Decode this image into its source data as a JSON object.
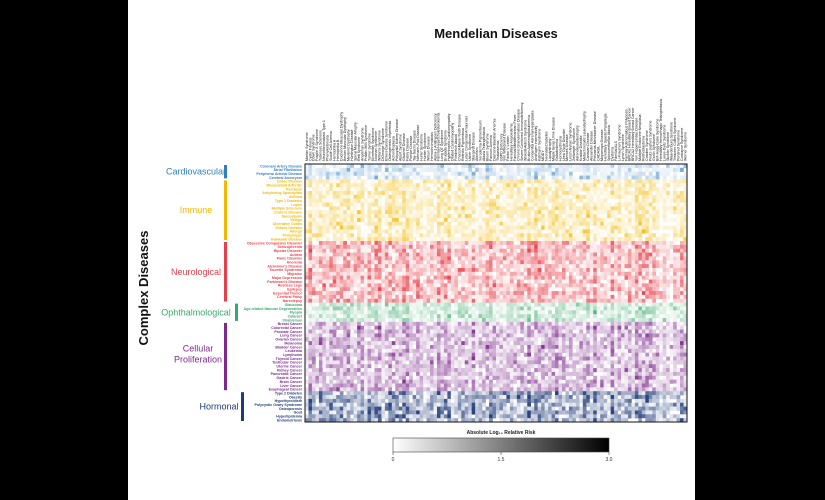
{
  "chart_data": {
    "type": "heatmap",
    "title": "Mendelian Diseases",
    "ylabel": "Complex Diseases",
    "colorbar": {
      "label": "Absolute Log₁₀ Relative Risk",
      "ticks": [
        "0",
        "1.5",
        "3.0"
      ],
      "range": [
        0,
        3.0
      ]
    },
    "n_columns": 110,
    "groups": [
      {
        "name": "Cardiovascular",
        "color": "#2f7fc0",
        "rows": [
          "Coronary Artery Disease",
          "Atrial Fibrillation",
          "Peripheral Arterial Disease",
          "Cerebral Aneurysm"
        ]
      },
      {
        "name": "Immune",
        "color": "#f2b800",
        "rows": [
          "Celiac Disease",
          "Rheumatoid Arthritis",
          "Psoriasis",
          "Ankylosing Spondylitis",
          "Asthma",
          "Type 1 Diabetes",
          "Lupus",
          "Multiple Sclerosis",
          "Crohn's Disease",
          "Sarcoidosis",
          "Vitiligo",
          "Ulcerative Colitis",
          "Graves Disease",
          "Allergy",
          "Pemphigus",
          "Kawasaki Disease"
        ]
      },
      {
        "name": "Neurological",
        "color": "#e8404a",
        "rows": [
          "Obsessive Compulsive Disorder",
          "Schizophrenia",
          "Bipolar Disorder",
          "Autism",
          "Panic Disorder",
          "Anorexia",
          "Alzheimer's Disease",
          "Tourette Syndrome",
          "Migraine",
          "Major Depression",
          "Parkinson's Disease",
          "Restless Legs",
          "Epilepsy",
          "Essential Tremor",
          "Cerebral Palsy",
          "Narcolepsy"
        ]
      },
      {
        "name": "Ophthalmological",
        "color": "#3aa86b",
        "rows": [
          "Glaucoma",
          "Age-related Macular Degeneration",
          "Myopia",
          "Cataract",
          "Strabismus"
        ]
      },
      {
        "name": "Cellular Proliferation",
        "color": "#7d2a8c",
        "rows": [
          "Breast Cancer",
          "Colorectal Cancer",
          "Prostate Cancer",
          "Lung Cancer",
          "Ovarian Cancer",
          "Melanoma",
          "Bladder Cancer",
          "Leukemia",
          "Lymphoma",
          "Thyroid Cancer",
          "Testicular Cancer",
          "Uterine Cancer",
          "Kidney Cancer",
          "Pancreatic Cancer",
          "Gastric Cancer",
          "Brain Cancer",
          "Liver Cancer",
          "Esophageal Cancer"
        ]
      },
      {
        "name": "Hormonal",
        "color": "#1f3a78",
        "rows": [
          "Type 2 Diabetes",
          "Obesity",
          "Hypothyroidism",
          "Polycystic Ovary Syndrome",
          "Osteoporosis",
          "Gout",
          "Hyperlipidemia",
          "Endometriosis"
        ]
      }
    ],
    "columns": [
      "Marfan Syndrome",
      "Cystic Fibrosis",
      "Down Syndrome",
      "Fragile X Syndrome",
      "Tuberous Sclerosis",
      "Neurofibromatosis Type 1",
      "Phenylketonuria",
      "Sickle Cell Anemia",
      "Hemophilia A",
      "Hemophilia B",
      "Duchenne Muscular Dystrophy",
      "Becker Muscular Dystrophy",
      "Myotonic Dystrophy",
      "Huntington Disease",
      "Spinal Muscular Atrophy",
      "Rett Syndrome",
      "Angelman Syndrome",
      "Prader-Willi Syndrome",
      "Turner Syndrome",
      "Klinefelter Syndrome",
      "Noonan Syndrome",
      "Williams Syndrome",
      "DiGeorge Syndrome",
      "Ehlers-Danlos Syndrome",
      "Osteogenesis Imperfecta",
      "Achondroplasia",
      "Polycystic Kidney Disease",
      "Alport Syndrome",
      "Gaucher Disease",
      "Fabry Disease",
      "Pompe Disease",
      "Tay-Sachs Disease",
      "Niemann-Pick Disease",
      "Hurler Syndrome",
      "Hunter Syndrome",
      "Wilson Disease",
      "Hemochromatosis",
      "Alpha-1 Antitrypsin Deficiency",
      "Familial Hypercholesterolemia",
      "Long QT Syndrome",
      "Brugada Syndrome",
      "Hypertrophic Cardiomyopathy",
      "Dilated Cardiomyopathy",
      "Friedreich Ataxia",
      "Charcot-Marie-Tooth Disease",
      "Retinitis Pigmentosa",
      "Leber Congenital Amaurosis",
      "Usher Syndrome",
      "Stargardt Disease",
      "Albinism",
      "Xeroderma Pigmentosum",
      "Ataxia Telangiectasia",
      "Bloom Syndrome",
      "Fanconi Anemia",
      "Diamond-Blackfan Anemia",
      "Thalassemia",
      "G6PD Deficiency",
      "Von Willebrand Disease",
      "Factor V Leiden",
      "Hereditary Angioedema",
      "Familial Mediterranean Fever",
      "Chronic Granulomatous Disease",
      "Severe Combined Immunodeficiency",
      "Wiskott-Aldrich Syndrome",
      "Bruton Agammaglobulinemia",
      "Congenital Adrenal Hyperplasia",
      "Androgen Insensitivity",
      "Kallmann Syndrome",
      "MODY",
      "Neonatal Diabetes",
      "Lipodystrophy",
      "Maple Syrup Urine Disease",
      "Galactosemia",
      "Homocystinuria",
      "Urea Cycle Disorder",
      "Menkes Disease",
      "Lesch-Nyhan Syndrome",
      "Zellweger Syndrome",
      "Adrenoleukodystrophy",
      "Krabbe Disease",
      "Metachromatic Leukodystrophy",
      "Canavan Disease",
      "Alexander Disease",
      "Pelizaeus-Merzbacher Disease",
      "CADASIL",
      "Moyamoya Disease",
      "Hereditary Spastic Paraplegia",
      "Spinocerebellar Ataxia",
      "Dystonia",
      "Familial ALS",
      "Li-Fraumeni Syndrome",
      "Lynch Syndrome",
      "Familial Adenomatous Polyposis",
      "BRCA1 Hereditary Breast Cancer",
      "BRCA2 Hereditary Breast Cancer",
      "Von Hippel-Lindau Disease",
      "Multiple Endocrine Neoplasia",
      "Retinoblastoma",
      "Cowden Syndrome",
      "Peutz-Jeghers Syndrome",
      "Gorlin Syndrome",
      "Birt-Hogg-Dube Syndrome",
      "Hereditary Hemorrhagic Telangiectasia",
      "Loeys-Dietz Syndrome",
      "Stickler Syndrome",
      "Waardenburg Syndrome",
      "Treacher Collins Syndrome",
      "Pendred Syndrome",
      "Cockayne Syndrome",
      "Werner Syndrome"
    ]
  }
}
